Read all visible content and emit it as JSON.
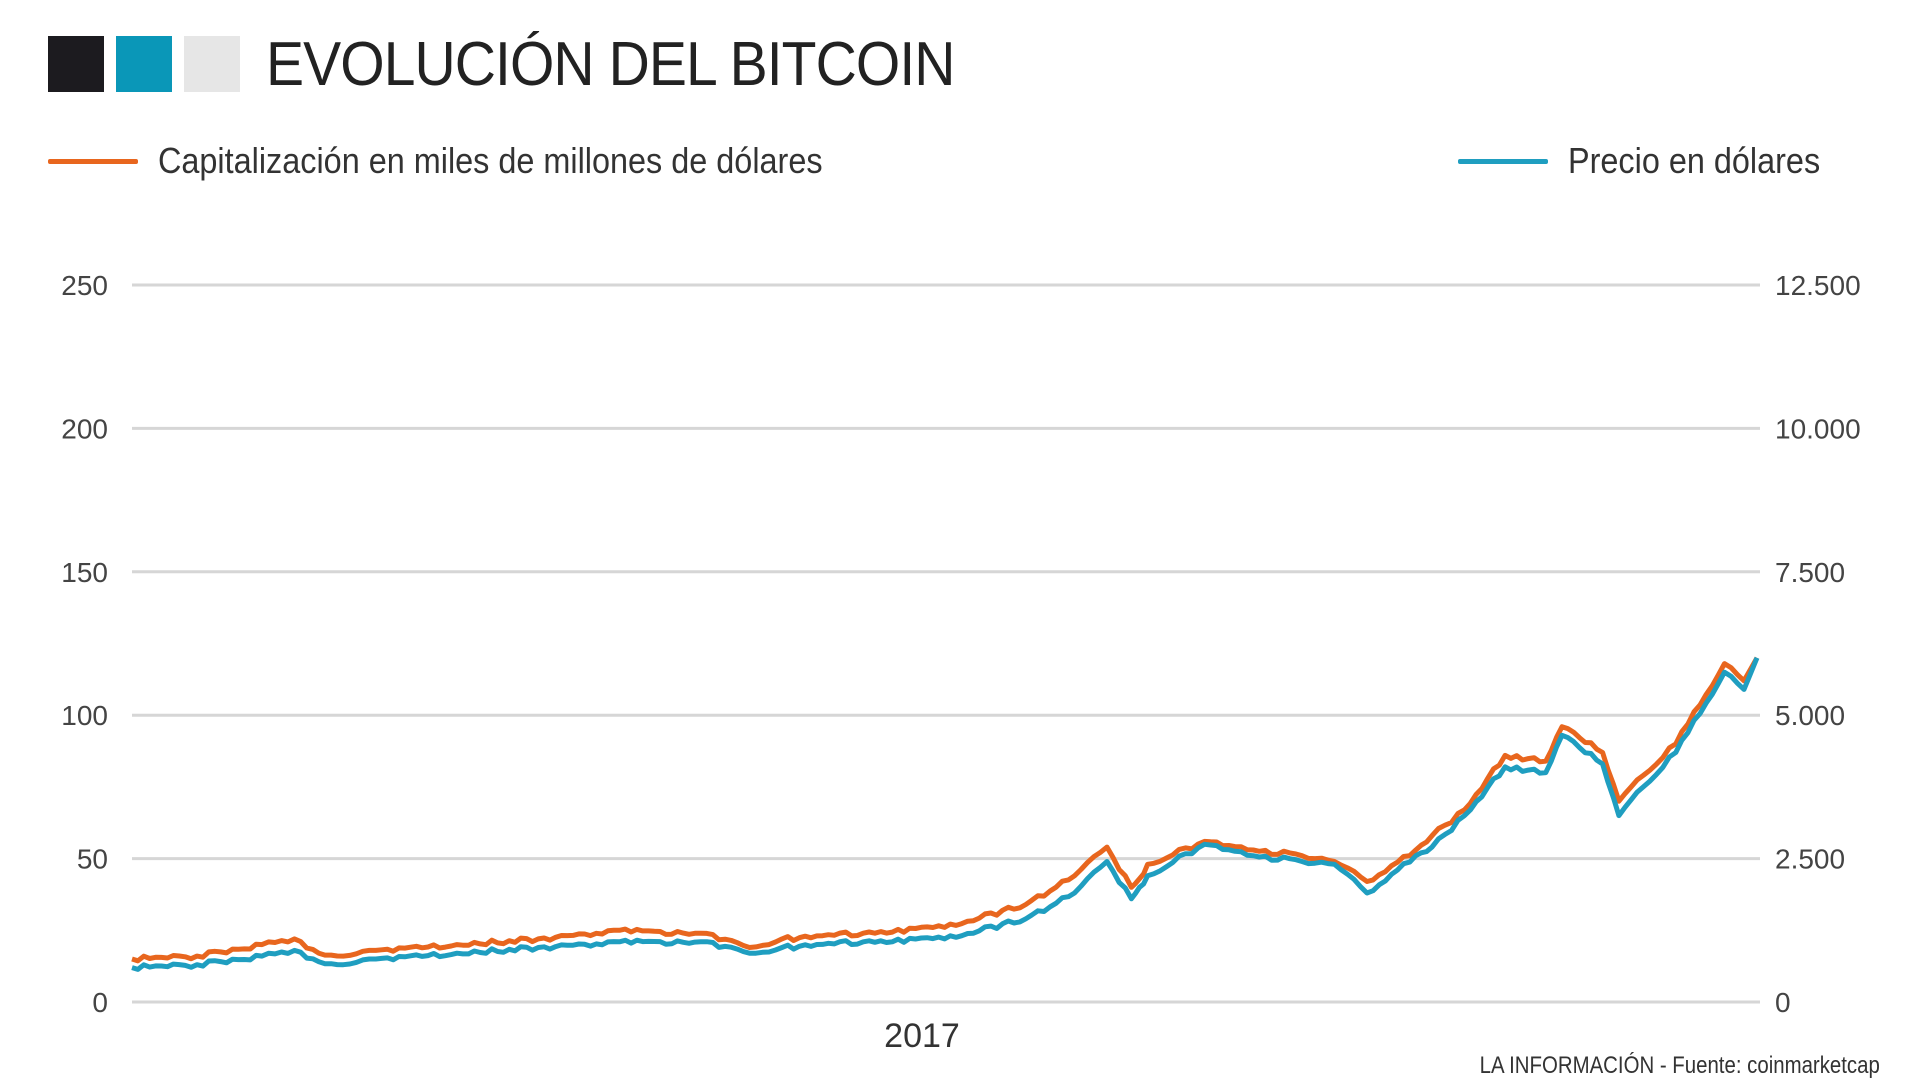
{
  "header": {
    "title": "EVOLUCIÓN DEL BITCOIN",
    "squares": [
      "#1c1b1f",
      "#0a97b8",
      "#e6e6e6"
    ]
  },
  "legend": [
    {
      "label": "Capitalización en miles de millones de dólares",
      "color": "#e8661e"
    },
    {
      "label": "Precio en dólares",
      "color": "#1f9ec0"
    }
  ],
  "footer": {
    "text": "LA INFORMACIÓN - Fuente: coinmarketcap"
  },
  "chart_data": {
    "type": "line",
    "title": "EVOLUCIÓN DEL BITCOIN",
    "xlabel": "2017",
    "ylabel_left": "Capitalización en miles de millones de dólares",
    "ylabel_right": "Precio en dólares",
    "x_tick_labels": [
      "2017"
    ],
    "left_axis": {
      "ticks": [
        0,
        50,
        100,
        150,
        200,
        250
      ],
      "tick_labels": [
        "0",
        "50",
        "100",
        "150",
        "200",
        "250"
      ],
      "range": [
        0,
        250
      ]
    },
    "right_axis": {
      "ticks": [
        0,
        2500,
        5000,
        7500,
        10000,
        12500
      ],
      "tick_labels": [
        "0",
        "2.500",
        "5.000",
        "7.500",
        "10.000",
        "12.500"
      ],
      "range": [
        0,
        12500
      ]
    },
    "grid": true,
    "legend_position": "top",
    "x": [
      0,
      0.04,
      0.08,
      0.1,
      0.115,
      0.13,
      0.15,
      0.2,
      0.25,
      0.3,
      0.35,
      0.38,
      0.4,
      0.45,
      0.5,
      0.55,
      0.58,
      0.6,
      0.615,
      0.62,
      0.625,
      0.66,
      0.69,
      0.72,
      0.74,
      0.76,
      0.79,
      0.8,
      0.82,
      0.845,
      0.87,
      0.88,
      0.905,
      0.915,
      0.93,
      0.95,
      0.98,
      0.992,
      1.0
    ],
    "series": [
      {
        "name": "Capitalización en miles de millones de dólares",
        "axis": "left",
        "color": "#e8661e",
        "values": [
          15,
          16,
          20,
          22,
          17,
          16,
          18,
          20,
          22,
          25,
          24,
          19,
          22,
          24,
          26,
          34,
          44,
          54,
          40,
          43,
          48,
          56,
          53,
          51,
          49,
          42,
          53,
          58,
          67,
          86,
          84,
          96,
          87,
          70,
          79,
          90,
          118,
          112,
          120
        ]
      },
      {
        "name": "Precio en dólares",
        "axis": "right",
        "color": "#1f9ec0",
        "values": [
          600,
          650,
          800,
          900,
          700,
          650,
          750,
          850,
          950,
          1050,
          1050,
          850,
          950,
          1050,
          1100,
          1450,
          1900,
          2450,
          1800,
          2000,
          2200,
          2750,
          2550,
          2450,
          2400,
          1900,
          2550,
          2700,
          3250,
          4100,
          4000,
          4650,
          4150,
          3250,
          3750,
          4350,
          5750,
          5450,
          6000
        ]
      }
    ]
  }
}
